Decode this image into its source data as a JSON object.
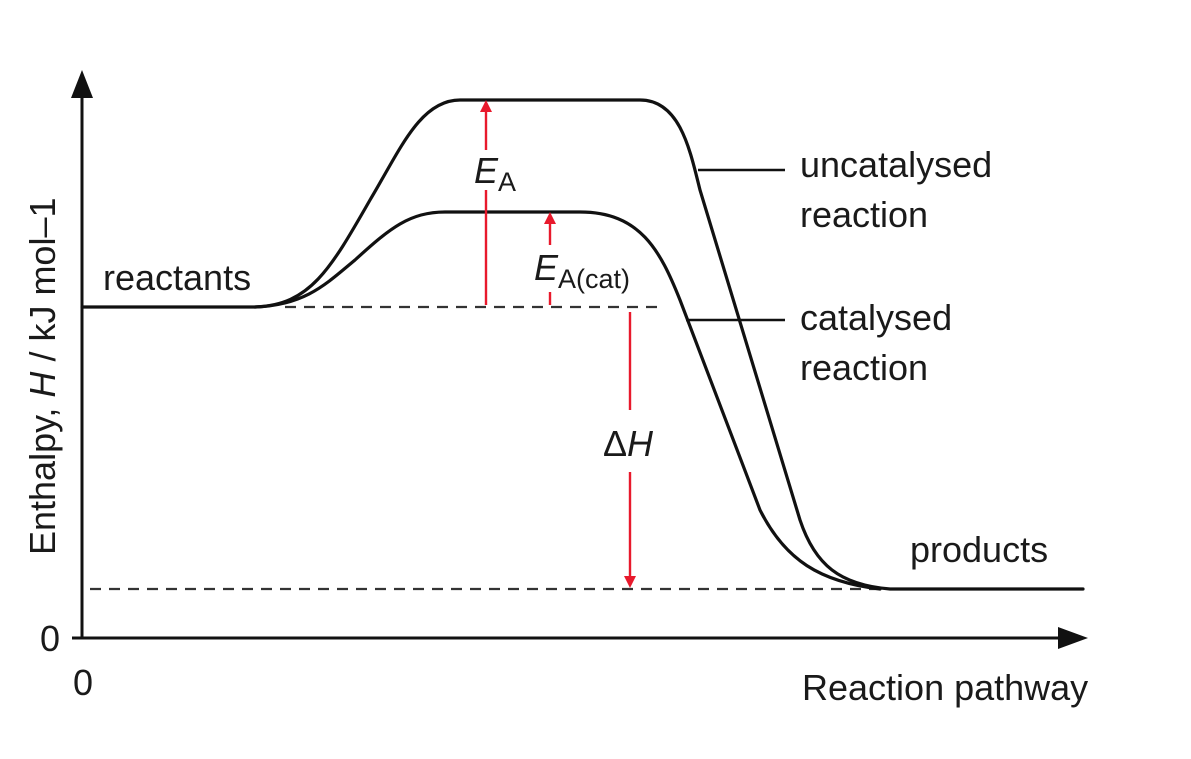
{
  "axes": {
    "y_label_text": "Enthalpy, ",
    "y_label_symbol": "H",
    "y_label_unit": " / kJ mol–1",
    "y_origin": "0",
    "x_origin": "0",
    "x_label": "Reaction pathway"
  },
  "levels": {
    "reactants": "reactants",
    "products": "products"
  },
  "curves": {
    "uncatalysed_line1": "uncatalysed",
    "uncatalysed_line2": "reaction",
    "catalysed_line1": "catalysed",
    "catalysed_line2": "reaction"
  },
  "annotations": {
    "ea_symbol": "E",
    "ea_subscript": "A",
    "ea_cat_symbol": "E",
    "ea_cat_subscript": "A(cat)",
    "delta_h_prefix": "Δ",
    "delta_h_symbol": "H"
  },
  "colors": {
    "curve": "#111111",
    "arrow_red": "#e8192c"
  }
}
